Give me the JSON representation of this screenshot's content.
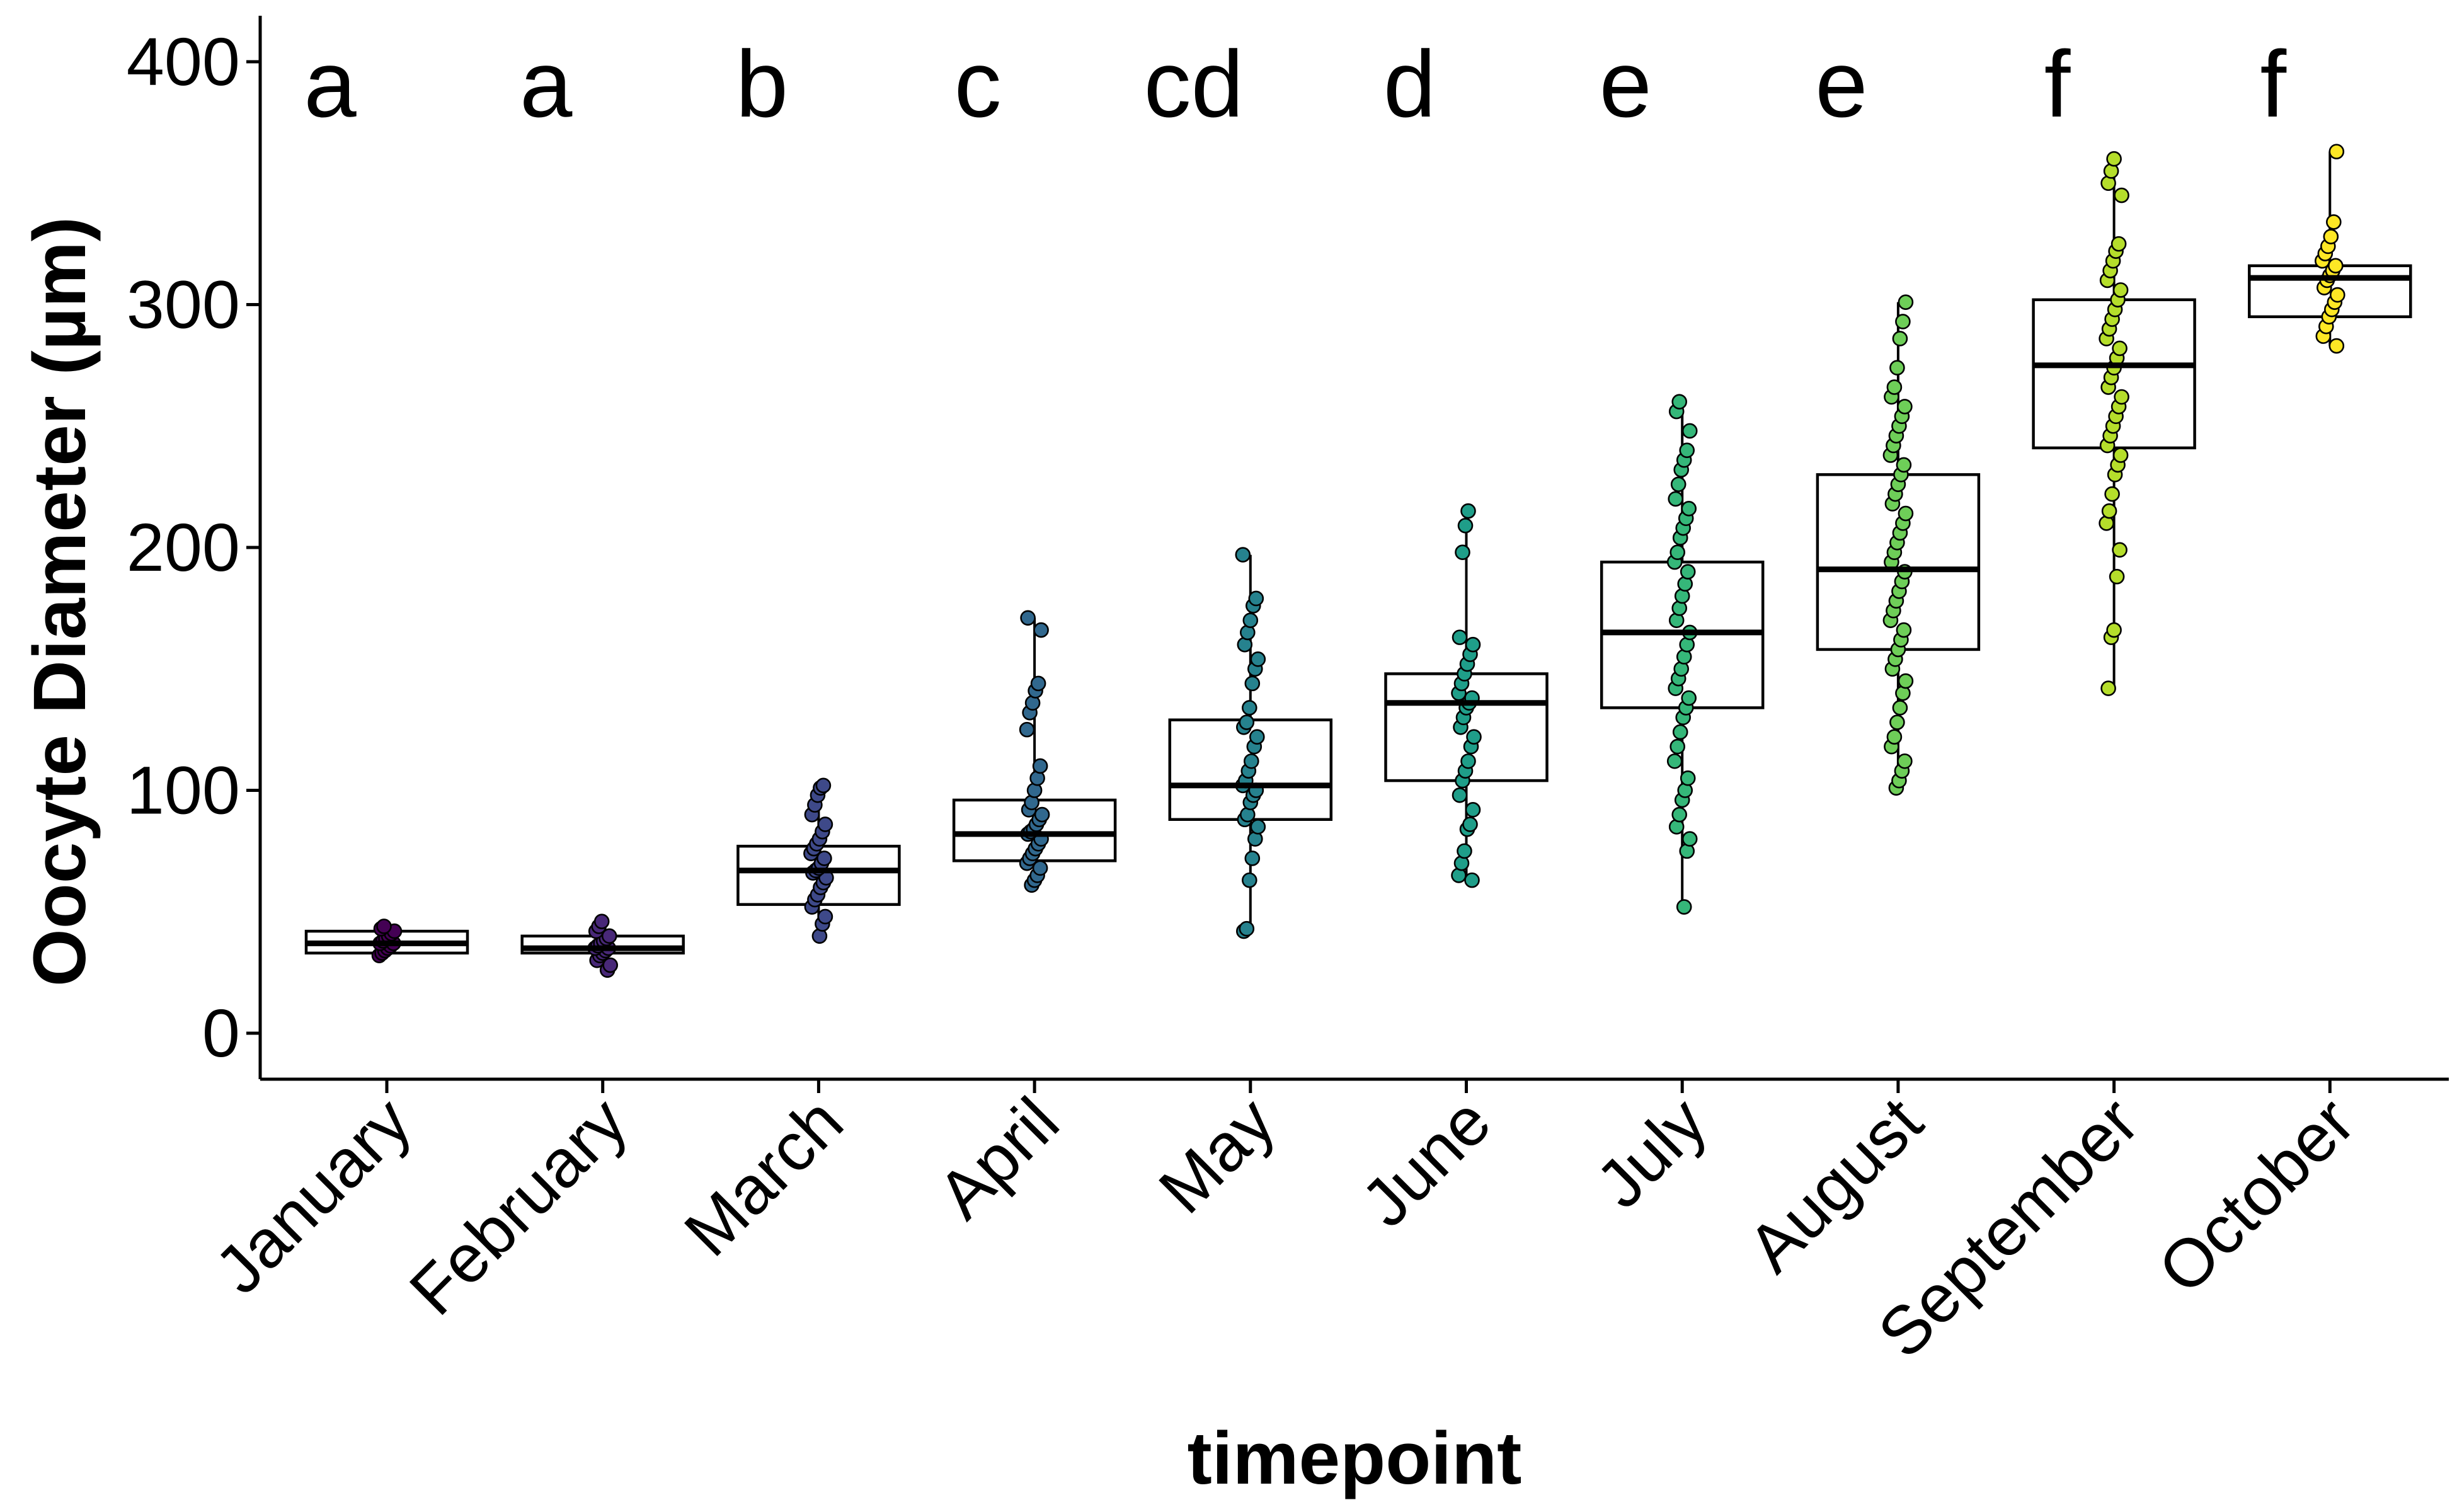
{
  "chart_data": {
    "type": "box-jitter",
    "title": "",
    "xlabel": "timepoint",
    "ylabel": "Oocyte Diameter (µm)",
    "ylim": [
      -20,
      420
    ],
    "yticks": [
      0,
      100,
      200,
      300,
      400
    ],
    "grid": false,
    "legend": "none",
    "categories": [
      "January",
      "February",
      "March",
      "April",
      "May",
      "June",
      "July",
      "August",
      "September",
      "October"
    ],
    "series": [
      {
        "category": "January",
        "letter": "a",
        "color": "#440154",
        "box": {
          "min": 32,
          "q1": 33,
          "median": 37,
          "q3": 42,
          "max": 44
        },
        "points": [
          32,
          33,
          34,
          35,
          36,
          37,
          37,
          38,
          39,
          40,
          41,
          42,
          43,
          44
        ]
      },
      {
        "category": "February",
        "letter": "a",
        "color": "#482878",
        "box": {
          "min": 26,
          "q1": 33,
          "median": 35,
          "q3": 40,
          "max": 46
        },
        "points": [
          26,
          28,
          30,
          32,
          33,
          34,
          35,
          35,
          36,
          37,
          38,
          39,
          40,
          42,
          44,
          46
        ]
      },
      {
        "category": "March",
        "letter": "b",
        "color": "#3e4989",
        "box": {
          "min": 40,
          "q1": 53,
          "median": 67,
          "q3": 77,
          "max": 102
        },
        "points": [
          40,
          45,
          48,
          52,
          55,
          57,
          60,
          62,
          64,
          66,
          67,
          68,
          70,
          72,
          74,
          76,
          78,
          80,
          83,
          86,
          90,
          94,
          98,
          101,
          102
        ]
      },
      {
        "category": "April",
        "letter": "c",
        "color": "#31688e",
        "box": {
          "min": 61,
          "q1": 71,
          "median": 82,
          "q3": 96,
          "max": 171
        },
        "points": [
          61,
          63,
          65,
          68,
          70,
          72,
          74,
          76,
          78,
          80,
          82,
          83,
          84,
          86,
          88,
          90,
          92,
          95,
          100,
          105,
          110,
          125,
          132,
          136,
          141,
          144,
          166,
          171
        ]
      },
      {
        "category": "May",
        "letter": "cd",
        "color": "#26828e",
        "box": {
          "min": 42,
          "q1": 88,
          "median": 102,
          "q3": 129,
          "max": 197
        },
        "points": [
          42,
          43,
          63,
          72,
          80,
          85,
          88,
          90,
          95,
          98,
          100,
          102,
          104,
          108,
          112,
          118,
          122,
          126,
          128,
          134,
          144,
          150,
          154,
          160,
          165,
          170,
          176,
          179,
          197
        ]
      },
      {
        "category": "June",
        "letter": "d",
        "color": "#1f9e89",
        "box": {
          "min": 63,
          "q1": 104,
          "median": 136,
          "q3": 148,
          "max": 215
        },
        "points": [
          63,
          65,
          70,
          75,
          84,
          86,
          92,
          98,
          104,
          108,
          112,
          118,
          122,
          126,
          130,
          134,
          136,
          138,
          140,
          144,
          148,
          152,
          156,
          160,
          163,
          198,
          209,
          215
        ]
      },
      {
        "category": "July",
        "letter": "e",
        "color": "#35b779",
        "box": {
          "min": 52,
          "q1": 134,
          "median": 165,
          "q3": 194,
          "max": 260
        },
        "points": [
          52,
          75,
          80,
          85,
          90,
          96,
          100,
          105,
          112,
          118,
          124,
          130,
          134,
          138,
          142,
          146,
          150,
          155,
          160,
          165,
          170,
          175,
          180,
          185,
          190,
          194,
          198,
          204,
          208,
          212,
          216,
          220,
          226,
          232,
          236,
          240,
          248,
          256,
          260
        ]
      },
      {
        "category": "August",
        "letter": "e",
        "color": "#6ece58",
        "box": {
          "min": 101,
          "q1": 158,
          "median": 191,
          "q3": 230,
          "max": 301
        },
        "points": [
          101,
          104,
          108,
          112,
          118,
          122,
          128,
          134,
          140,
          145,
          150,
          154,
          158,
          162,
          166,
          170,
          174,
          178,
          182,
          186,
          190,
          194,
          198,
          202,
          206,
          210,
          214,
          218,
          222,
          226,
          230,
          234,
          238,
          242,
          246,
          250,
          254,
          258,
          262,
          266,
          274,
          286,
          293,
          301
        ]
      },
      {
        "category": "September",
        "letter": "f",
        "color": "#b5de2b",
        "box": {
          "min": 142,
          "q1": 241,
          "median": 275,
          "q3": 302,
          "max": 360
        },
        "points": [
          142,
          163,
          166,
          188,
          199,
          210,
          215,
          222,
          230,
          234,
          238,
          242,
          246,
          250,
          254,
          258,
          262,
          266,
          270,
          274,
          278,
          282,
          286,
          290,
          294,
          298,
          302,
          306,
          310,
          314,
          318,
          322,
          325,
          345,
          350,
          355,
          360
        ]
      },
      {
        "category": "October",
        "letter": "f",
        "color": "#fde725",
        "box": {
          "min": 283,
          "q1": 295,
          "median": 311,
          "q3": 316,
          "max": 363
        },
        "points": [
          283,
          287,
          291,
          295,
          298,
          301,
          304,
          307,
          310,
          312,
          314,
          316,
          318,
          321,
          324,
          328,
          334,
          363
        ]
      }
    ]
  }
}
